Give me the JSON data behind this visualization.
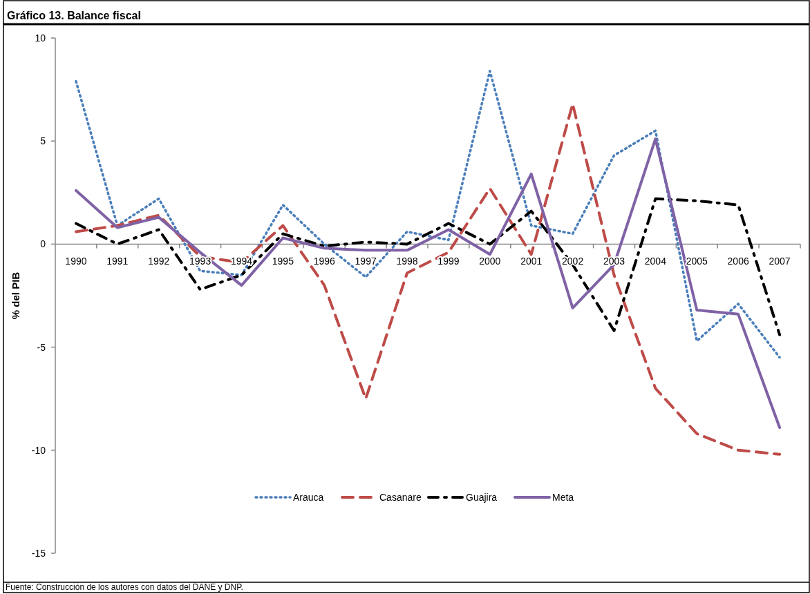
{
  "chart_data": {
    "type": "line",
    "title": "Gráfico 13. Balance fiscal",
    "ylabel": "% del PIB",
    "categories": [
      "1990",
      "1991",
      "1992",
      "1993",
      "1994",
      "1995",
      "1996",
      "1997",
      "1998",
      "1999",
      "2000",
      "2001",
      "2002",
      "2003",
      "2004",
      "2005",
      "2006",
      "2007"
    ],
    "series": [
      {
        "name": "Arauca",
        "color": "#4a7ebb",
        "line_style": "dotted",
        "values": [
          7.9,
          0.9,
          2.2,
          -1.3,
          -1.5,
          1.9,
          0.0,
          -1.6,
          0.6,
          0.2,
          8.4,
          0.9,
          0.5,
          4.3,
          5.5,
          -4.7,
          -2.9,
          -5.5
        ]
      },
      {
        "name": "Casanare",
        "color": "#be4b48",
        "line_style": "dashed",
        "values": [
          0.6,
          0.9,
          1.4,
          -0.6,
          -0.9,
          0.9,
          -2.0,
          -7.5,
          -1.4,
          -0.4,
          2.7,
          -0.5,
          6.8,
          -1.5,
          -7.0,
          -9.2,
          -10.0,
          -10.2
        ]
      },
      {
        "name": "Guajira",
        "color": "#000000",
        "line_style": "dashdot",
        "values": [
          1.0,
          0.0,
          0.7,
          -2.2,
          -1.5,
          0.5,
          -0.1,
          0.1,
          0.0,
          1.0,
          0.0,
          1.6,
          -1.0,
          -4.2,
          2.2,
          2.1,
          1.9,
          -4.4
        ]
      },
      {
        "name": "Meta",
        "color": "#7f62a6",
        "line_style": "solid",
        "values": [
          2.6,
          0.8,
          1.3,
          -0.4,
          -2.0,
          0.3,
          -0.2,
          -0.3,
          -0.3,
          0.7,
          -0.5,
          3.4,
          -3.1,
          -1.0,
          5.1,
          -3.2,
          -3.4,
          -8.9
        ]
      }
    ],
    "ylim": [
      -15,
      10
    ],
    "yticks": [
      -15,
      -10,
      -5,
      0,
      5,
      10
    ],
    "grid": false,
    "legend": "bottom",
    "marker": "none",
    "annotations": [
      "Fuente: Construcción de los autores con datos del DANE y DNP."
    ]
  }
}
